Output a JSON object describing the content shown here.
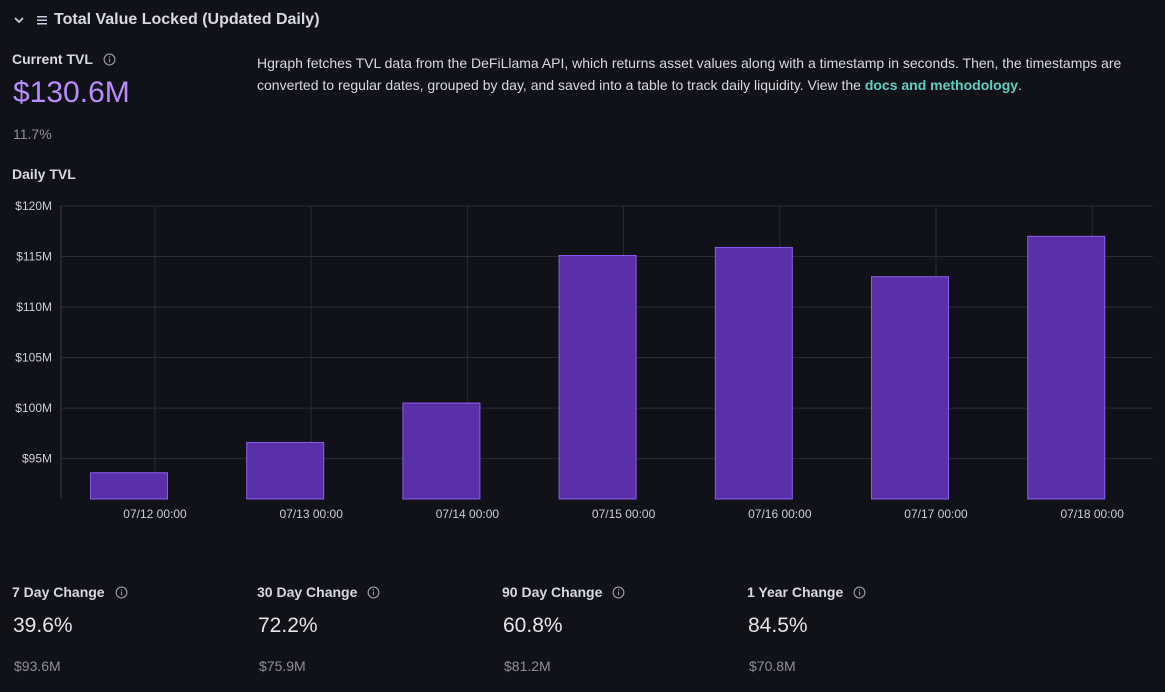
{
  "panel": {
    "title": "Total Value Locked (Updated Daily)"
  },
  "current_tvl": {
    "label": "Current TVL",
    "value": "$130.6M",
    "change": "11.7%"
  },
  "description": {
    "text": "Hgraph fetches TVL data from the DeFiLlama API, which returns asset values along with a timestamp in seconds. Then, the timestamps are converted to regular dates, grouped by day, and saved into a table to track daily liquidity. View the ",
    "link_text": "docs and methodology",
    "end": "."
  },
  "chart_data": {
    "type": "bar",
    "title": "Daily TVL",
    "categories": [
      "07/12 00:00",
      "07/13 00:00",
      "07/14 00:00",
      "07/15 00:00",
      "07/16 00:00",
      "07/17 00:00",
      "07/18 00:00"
    ],
    "values": [
      93.6,
      96.6,
      100.5,
      115.1,
      115.9,
      113.0,
      117.0
    ],
    "y_ticks": [
      "$95M",
      "$100M",
      "$105M",
      "$110M",
      "$115M",
      "$120M"
    ],
    "ylim": [
      91,
      120
    ],
    "grid": true,
    "bar_color": "#5a30a8"
  },
  "changes": [
    {
      "label": "7 Day Change",
      "value": "39.6%",
      "base": "$93.6M"
    },
    {
      "label": "30 Day Change",
      "value": "72.2%",
      "base": "$75.9M"
    },
    {
      "label": "90 Day Change",
      "value": "60.8%",
      "base": "$81.2M"
    },
    {
      "label": "1 Year Change",
      "value": "84.5%",
      "base": "$70.8M"
    }
  ]
}
